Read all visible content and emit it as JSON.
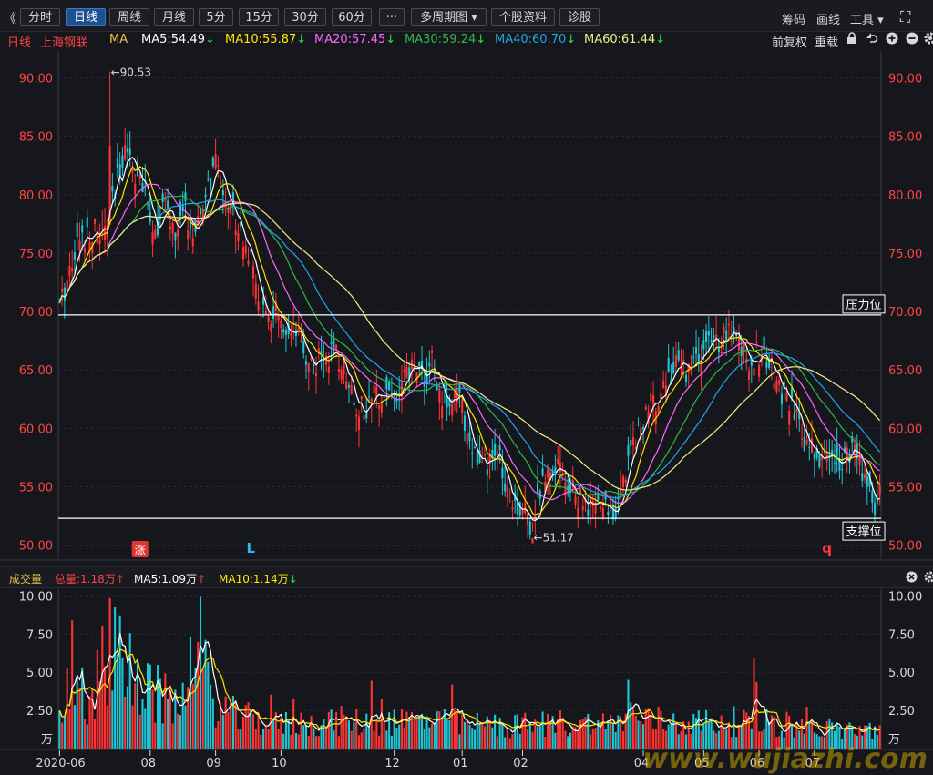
{
  "toolbar": {
    "collapse_glyph": "《",
    "tabs": [
      "分时",
      "日线",
      "周线",
      "月线",
      "5分",
      "15分",
      "30分",
      "60分",
      "···",
      "多周期图 ▾",
      "个股资料",
      "诊股"
    ],
    "active_tab": 1,
    "right_items": [
      "筹码",
      "画线",
      "工具 ▾"
    ],
    "expand_glyph": "⛶"
  },
  "ma_row": {
    "period": "日线",
    "stock": "上海钢联",
    "ma_label": "MA",
    "items": [
      {
        "text": "MA5:54.49",
        "arrow": "↓",
        "color": "#ffffff"
      },
      {
        "text": "MA10:55.87",
        "arrow": "↓",
        "color": "#ffe600"
      },
      {
        "text": "MA20:57.45",
        "arrow": "↓",
        "color": "#ff66ff"
      },
      {
        "text": "MA30:59.24",
        "arrow": "↓",
        "color": "#2fb84a"
      },
      {
        "text": "MA40:60.70",
        "arrow": "↓",
        "color": "#1ea7e8"
      },
      {
        "text": "MA60:61.44",
        "arrow": "↓",
        "color": "#f2ee8a"
      }
    ],
    "right_items": [
      "前复权",
      "重载"
    ],
    "icons": [
      "lock-icon",
      "undo-icon",
      "zoom-in-icon",
      "zoom-out-icon",
      "gear-icon"
    ]
  },
  "volume_row": {
    "title": "成交量",
    "total": "总量:1.18万",
    "total_arrow": "↑",
    "ma5": "MA5:1.09万",
    "ma5_arrow": "↑",
    "ma10": "MA10:1.14万",
    "ma10_arrow": "↓"
  },
  "colors": {
    "up": "#ff3333",
    "down": "#1fc6d6",
    "background": "#16171c",
    "axis_text": "#ff4444"
  },
  "chart_data": [
    {
      "type": "candlestick",
      "yticks": [
        "90.00",
        "85.00",
        "80.00",
        "75.00",
        "70.00",
        "65.00",
        "60.00",
        "55.00",
        "50.00"
      ],
      "ylim": [
        48.8,
        92.3
      ],
      "high_annotation": "←90.53",
      "high_value": 90.53,
      "low_annotation": "←51.17",
      "low_value": 51.17,
      "resistance": {
        "label": "压力位",
        "value": 69.7
      },
      "support": {
        "label": "支撑位",
        "value": 52.3
      },
      "markers": [
        {
          "text": "涨",
          "type": "badge",
          "color": "#e03535",
          "day": 32
        },
        {
          "text": "L",
          "type": "letter",
          "color": "#2fb8f0",
          "day": 76
        },
        {
          "text": "q",
          "type": "letter",
          "color": "#ff3a3a",
          "day": 305
        }
      ],
      "series": [
        {
          "name": "MA5",
          "color": "#ffffff"
        },
        {
          "name": "MA10",
          "color": "#ffe600"
        },
        {
          "name": "MA20",
          "color": "#ff66ff"
        },
        {
          "name": "MA30",
          "color": "#2fb84a"
        },
        {
          "name": "MA40",
          "color": "#1ea7e8"
        },
        {
          "name": "MA60",
          "color": "#f2ee8a"
        }
      ],
      "price_path": [
        [
          0,
          70.2
        ],
        [
          6,
          75.5
        ],
        [
          12,
          77
        ],
        [
          18,
          76.5
        ],
        [
          22,
          80
        ],
        [
          26,
          84.5
        ],
        [
          30,
          82
        ],
        [
          34,
          80
        ],
        [
          38,
          77
        ],
        [
          42,
          79
        ],
        [
          46,
          76.5
        ],
        [
          50,
          78.5
        ],
        [
          54,
          76
        ],
        [
          58,
          80
        ],
        [
          62,
          82.5
        ],
        [
          66,
          80
        ],
        [
          70,
          78
        ],
        [
          74,
          76
        ],
        [
          78,
          72
        ],
        [
          82,
          69
        ],
        [
          86,
          70
        ],
        [
          90,
          67
        ],
        [
          94,
          68
        ],
        [
          98,
          66
        ],
        [
          102,
          65.5
        ],
        [
          106,
          66.5
        ],
        [
          110,
          66
        ],
        [
          114,
          65
        ],
        [
          118,
          62
        ],
        [
          122,
          61.5
        ],
        [
          126,
          63
        ],
        [
          130,
          63.5
        ],
        [
          134,
          62.5
        ],
        [
          138,
          64.5
        ],
        [
          142,
          65.5
        ],
        [
          146,
          64
        ],
        [
          148,
          66
        ],
        [
          150,
          63
        ],
        [
          154,
          62.5
        ],
        [
          158,
          63
        ],
        [
          162,
          60
        ],
        [
          166,
          57
        ],
        [
          170,
          56.5
        ],
        [
          174,
          58
        ],
        [
          178,
          55
        ],
        [
          182,
          53.5
        ],
        [
          186,
          52.5
        ],
        [
          188,
          51.5
        ],
        [
          190,
          54
        ],
        [
          194,
          56.5
        ],
        [
          198,
          57.5
        ],
        [
          202,
          55
        ],
        [
          206,
          54
        ],
        [
          210,
          53
        ],
        [
          214,
          53.5
        ],
        [
          218,
          53
        ],
        [
          222,
          53.5
        ],
        [
          224,
          55
        ],
        [
          226,
          58
        ],
        [
          230,
          60
        ],
        [
          234,
          61.5
        ],
        [
          238,
          63
        ],
        [
          242,
          64.5
        ],
        [
          246,
          65.5
        ],
        [
          250,
          65
        ],
        [
          254,
          66
        ],
        [
          258,
          67
        ],
        [
          262,
          67.5
        ],
        [
          266,
          68
        ],
        [
          268,
          68.5
        ],
        [
          270,
          67
        ],
        [
          274,
          66
        ],
        [
          278,
          66.5
        ],
        [
          282,
          65.5
        ],
        [
          286,
          63.5
        ],
        [
          290,
          62
        ],
        [
          294,
          60
        ],
        [
          298,
          58.5
        ],
        [
          302,
          57.5
        ],
        [
          306,
          57.5
        ],
        [
          310,
          57.5
        ],
        [
          314,
          58
        ],
        [
          318,
          57
        ],
        [
          322,
          55
        ],
        [
          324,
          53
        ],
        [
          326,
          54.5
        ]
      ],
      "volume_path": [
        [
          0,
          2.8
        ],
        [
          4,
          3.2
        ],
        [
          8,
          3.5
        ],
        [
          12,
          3.0
        ],
        [
          16,
          4.5
        ],
        [
          20,
          6.5
        ],
        [
          24,
          7.4
        ],
        [
          28,
          5.8
        ],
        [
          32,
          3.6
        ],
        [
          36,
          3.4
        ],
        [
          40,
          3.2
        ],
        [
          44,
          2.8
        ],
        [
          48,
          3.0
        ],
        [
          52,
          4.0
        ],
        [
          56,
          5.2
        ],
        [
          60,
          3.6
        ],
        [
          64,
          2.5
        ],
        [
          68,
          2.2
        ],
        [
          72,
          1.8
        ],
        [
          78,
          1.9
        ],
        [
          86,
          1.5
        ],
        [
          100,
          1.6
        ],
        [
          112,
          1.7
        ],
        [
          120,
          1.6
        ],
        [
          140,
          1.8
        ],
        [
          160,
          1.5
        ],
        [
          180,
          1.4
        ],
        [
          200,
          1.6
        ],
        [
          220,
          1.5
        ],
        [
          226,
          2.2
        ],
        [
          232,
          1.8
        ],
        [
          250,
          1.6
        ],
        [
          270,
          1.7
        ],
        [
          280,
          1.6
        ],
        [
          290,
          1.5
        ],
        [
          300,
          1.3
        ],
        [
          310,
          1.2
        ],
        [
          320,
          1.2
        ],
        [
          326,
          1.18
        ]
      ]
    },
    {
      "type": "bar",
      "yticks": [
        "10.00",
        "7.50",
        "5.00",
        "2.50"
      ],
      "ylim": [
        0,
        10.5
      ],
      "unit": "万",
      "xticks": [
        {
          "label": "2020-06",
          "day": 0
        },
        {
          "label": "08",
          "day": 36
        },
        {
          "label": "09",
          "day": 62
        },
        {
          "label": "10",
          "day": 88
        },
        {
          "label": "12",
          "day": 133
        },
        {
          "label": "01",
          "day": 160
        },
        {
          "label": "02",
          "day": 184
        },
        {
          "label": "04",
          "day": 232
        },
        {
          "label": "05",
          "day": 256
        },
        {
          "label": "06",
          "day": 278
        },
        {
          "label": "07",
          "day": 300
        }
      ],
      "series": [
        {
          "name": "MA5",
          "color": "#ffffff"
        },
        {
          "name": "MA10",
          "color": "#ffe600"
        }
      ]
    }
  ],
  "watermark": "www.wujiazhi.com"
}
